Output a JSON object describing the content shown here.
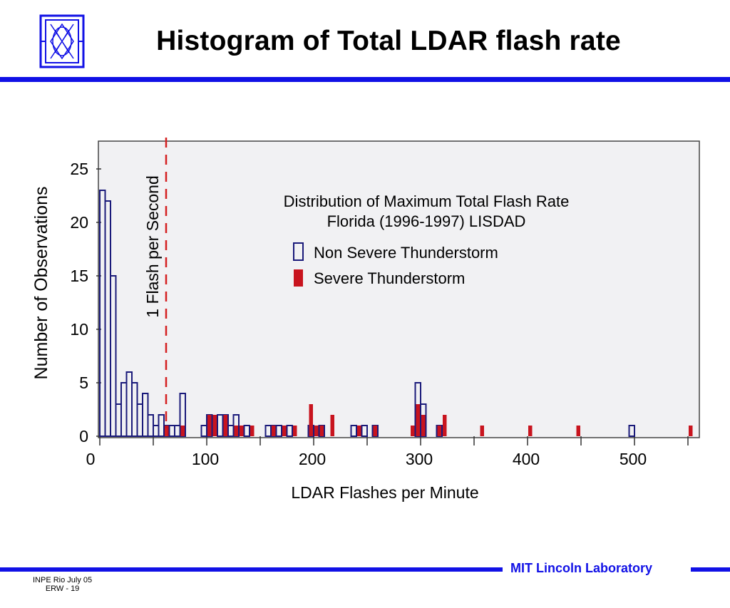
{
  "slide": {
    "title": "Histogram of Total LDAR flash rate",
    "footer_org": "MIT Lincoln Laboratory",
    "footer_line1": "INPE Rio  July 05",
    "footer_line2": "ERW - 19"
  },
  "colors": {
    "brand_blue": "#1111e6",
    "non_severe": "#1a1a7a",
    "severe": "#c8141e",
    "marker_line": "#d42020",
    "plot_bg": "#f1f1f3"
  },
  "chart_data": {
    "type": "bar",
    "title": "Distribution of Maximum Total Flash Rate",
    "subtitle": "Florida (1996-1997) LISDAD",
    "xlabel": "LDAR Flashes per Minute",
    "ylabel": "Number of Observations",
    "xlim": [
      0,
      560
    ],
    "ylim": [
      0,
      28
    ],
    "x_ticks": [
      0,
      100,
      200,
      300,
      400,
      500
    ],
    "y_ticks": [
      0,
      5,
      10,
      15,
      20,
      25
    ],
    "annotation": "1 Flash per Second",
    "annotation_x": 60,
    "legend_position": "top-right",
    "bin_width": 5,
    "series": [
      {
        "name": "Non Severe Thunderstorm",
        "style": "outline",
        "bins": [
          {
            "x": 0,
            "count": 23
          },
          {
            "x": 5,
            "count": 22
          },
          {
            "x": 10,
            "count": 15
          },
          {
            "x": 15,
            "count": 3
          },
          {
            "x": 20,
            "count": 5
          },
          {
            "x": 25,
            "count": 6
          },
          {
            "x": 30,
            "count": 5
          },
          {
            "x": 35,
            "count": 3
          },
          {
            "x": 40,
            "count": 4
          },
          {
            "x": 45,
            "count": 2
          },
          {
            "x": 50,
            "count": 1
          },
          {
            "x": 55,
            "count": 2
          },
          {
            "x": 60,
            "count": 1
          },
          {
            "x": 65,
            "count": 1
          },
          {
            "x": 70,
            "count": 1
          },
          {
            "x": 75,
            "count": 4
          },
          {
            "x": 95,
            "count": 1
          },
          {
            "x": 100,
            "count": 2
          },
          {
            "x": 110,
            "count": 2
          },
          {
            "x": 115,
            "count": 2
          },
          {
            "x": 120,
            "count": 1
          },
          {
            "x": 125,
            "count": 2
          },
          {
            "x": 135,
            "count": 1
          },
          {
            "x": 155,
            "count": 1
          },
          {
            "x": 160,
            "count": 1
          },
          {
            "x": 165,
            "count": 1
          },
          {
            "x": 175,
            "count": 1
          },
          {
            "x": 195,
            "count": 1
          },
          {
            "x": 205,
            "count": 1
          },
          {
            "x": 235,
            "count": 1
          },
          {
            "x": 245,
            "count": 1
          },
          {
            "x": 255,
            "count": 1
          },
          {
            "x": 295,
            "count": 5
          },
          {
            "x": 300,
            "count": 3
          },
          {
            "x": 315,
            "count": 1
          },
          {
            "x": 495,
            "count": 1
          }
        ]
      },
      {
        "name": "Severe Thunderstorm",
        "style": "filled",
        "bins": [
          {
            "x": 60,
            "count": 1
          },
          {
            "x": 75,
            "count": 1
          },
          {
            "x": 100,
            "count": 2
          },
          {
            "x": 105,
            "count": 2
          },
          {
            "x": 115,
            "count": 2
          },
          {
            "x": 125,
            "count": 1
          },
          {
            "x": 130,
            "count": 1
          },
          {
            "x": 140,
            "count": 1
          },
          {
            "x": 160,
            "count": 1
          },
          {
            "x": 170,
            "count": 1
          },
          {
            "x": 180,
            "count": 1
          },
          {
            "x": 195,
            "count": 3
          },
          {
            "x": 200,
            "count": 1
          },
          {
            "x": 205,
            "count": 1
          },
          {
            "x": 215,
            "count": 2
          },
          {
            "x": 240,
            "count": 1
          },
          {
            "x": 255,
            "count": 1
          },
          {
            "x": 290,
            "count": 1
          },
          {
            "x": 295,
            "count": 3
          },
          {
            "x": 300,
            "count": 2
          },
          {
            "x": 315,
            "count": 1
          },
          {
            "x": 320,
            "count": 2
          },
          {
            "x": 355,
            "count": 1
          },
          {
            "x": 400,
            "count": 1
          },
          {
            "x": 445,
            "count": 1
          },
          {
            "x": 550,
            "count": 1
          }
        ]
      }
    ]
  }
}
